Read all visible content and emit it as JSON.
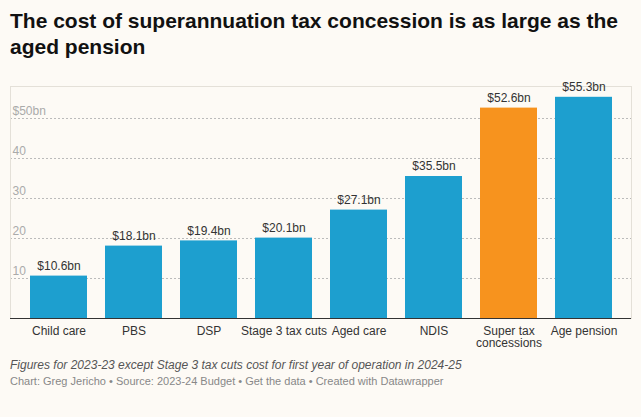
{
  "chart_data": {
    "type": "bar",
    "title": "The cost of superannuation tax concession is as large as the aged pension",
    "caption": "Figures for 2023-23 except Stage 3 tax cuts cost for first year of operation in 2024-25",
    "source": "Chart: Greg Jericho • Source: 2023-24 Budget • Get the data • Created with Datawrapper",
    "categories": [
      "Child care",
      "PBS",
      "DSP",
      "Stage 3 tax cuts",
      "Aged care",
      "NDIS",
      "Super tax concessions",
      "Age pension"
    ],
    "values": [
      10.6,
      18.1,
      19.4,
      20.1,
      27.1,
      35.5,
      52.6,
      55.3
    ],
    "value_labels": [
      "$10.6bn",
      "$18.1bn",
      "$19.4bn",
      "$20.1bn",
      "$27.1bn",
      "$35.5bn",
      "$52.6bn",
      "$55.3bn"
    ],
    "colors": [
      "#1d9fcf",
      "#1d9fcf",
      "#1d9fcf",
      "#1d9fcf",
      "#1d9fcf",
      "#1d9fcf",
      "#f7931e",
      "#1d9fcf"
    ],
    "ylim": [
      0,
      58
    ],
    "yticks": [
      10,
      20,
      30,
      40,
      {
        "value": 50,
        "label": "$50bn"
      }
    ],
    "grid": true,
    "data_labels": true
  }
}
